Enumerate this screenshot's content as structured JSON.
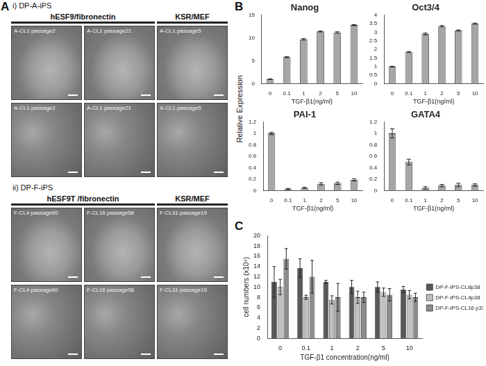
{
  "figure": {
    "panel_labels": [
      "A",
      "B",
      "C"
    ],
    "shared_y_label": "Relative Expression"
  },
  "photo_panel": {
    "groups": [
      {
        "title": "i) DP-A-iPS",
        "headers": [
          "hESF9/fibronectin",
          "KSR/MEF"
        ],
        "rows": [
          [
            "A-CL1 passage2",
            "A-CL1 passage21",
            "A-CL1 passage5"
          ],
          [
            "A-CL1 passage2",
            "A-CL1 passage21",
            "A-CL1 passage5"
          ]
        ]
      },
      {
        "title": "ii) DP-F-iPS",
        "headers": [
          "hESF9T /fibronectin",
          "KSR/MEF"
        ],
        "rows": [
          [
            "F-CL4 passage60",
            "F-CL16 passage58",
            "F-CL31 passage19"
          ],
          [
            "F-CL4 passage60",
            "F-CL16 passage58",
            "F-CL31 passage19"
          ]
        ]
      }
    ]
  },
  "chart_data": [
    {
      "type": "bar",
      "title": "Nanog",
      "x_label": "TGF-β1(ng/ml)",
      "categories": [
        "0",
        "0.1",
        "1",
        "2",
        "5",
        "10"
      ],
      "values": [
        1,
        5.8,
        9.7,
        11.4,
        11.2,
        12.8
      ],
      "errors": [
        0.05,
        0.1,
        0.15,
        0.1,
        0.15,
        0.1
      ],
      "color": "#a6a6a6",
      "ylim": [
        0,
        15
      ],
      "yticks": [
        0,
        5,
        10,
        15
      ],
      "grid": false
    },
    {
      "type": "bar",
      "title": "Oct3/4",
      "x_label": "TGF-β1(ng/ml)",
      "categories": [
        "0",
        "0.1",
        "1",
        "2",
        "5",
        "10"
      ],
      "values": [
        1,
        1.85,
        2.9,
        3.35,
        3.1,
        3.5
      ],
      "errors": [
        0.02,
        0.03,
        0.05,
        0.04,
        0.03,
        0.03
      ],
      "color": "#a6a6a6",
      "ylim": [
        0,
        4
      ],
      "yticks": [
        0,
        0.5,
        1,
        1.5,
        2,
        2.5,
        3,
        3.5,
        4
      ],
      "grid": false
    },
    {
      "type": "bar",
      "title": "PAI-1",
      "x_label": "TGF-β1(ng/ml)",
      "categories": [
        "0",
        "0.1",
        "1",
        "2",
        "5",
        "10"
      ],
      "values": [
        1,
        0.03,
        0.05,
        0.12,
        0.13,
        0.19
      ],
      "errors": [
        0.02,
        0.01,
        0.01,
        0.02,
        0.02,
        0.02
      ],
      "color": "#a6a6a6",
      "ylim": [
        0,
        1.2
      ],
      "yticks": [
        0,
        0.2,
        0.4,
        0.6,
        0.8,
        1,
        1.2
      ],
      "grid": false
    },
    {
      "type": "bar",
      "title": "GATA4",
      "x_label": "TGF-β1(ng/ml)",
      "categories": [
        "0",
        "0.1",
        "1",
        "2",
        "5",
        "10"
      ],
      "values": [
        1,
        0.5,
        0.05,
        0.09,
        0.1,
        0.1
      ],
      "errors": [
        0.08,
        0.05,
        0.02,
        0.02,
        0.03,
        0.02
      ],
      "color": "#a6a6a6",
      "ylim": [
        0,
        1.2
      ],
      "yticks": [
        0,
        0.2,
        0.4,
        0.6,
        0.8,
        1,
        1.2
      ],
      "grid": false
    },
    {
      "type": "bar",
      "x_label": "TGF-β1 concentration(ng/ml)",
      "y_label": "cell numbers (x10⁴)",
      "categories": [
        "0",
        "0.1",
        "1",
        "2",
        "5",
        "10"
      ],
      "series": [
        {
          "name": "DP-F-iPS-CL8p38",
          "color": "#595959",
          "values": [
            11,
            13.7,
            11,
            10,
            10,
            9.5
          ],
          "errors": [
            3,
            1.8,
            0.3,
            1.3,
            1,
            0.6
          ]
        },
        {
          "name": "DP-F-iPS-CL4p38",
          "color": "#c0c0c0",
          "values": [
            10,
            8,
            7.5,
            8,
            9,
            8.5
          ],
          "errors": [
            1.5,
            0.4,
            0.8,
            1.2,
            0.8,
            0.8
          ]
        },
        {
          "name": "DP-F-iPS-CL16 p33",
          "color": "#8c8c8c",
          "values": [
            15.5,
            12,
            8,
            8,
            8.5,
            8
          ],
          "errors": [
            2,
            3.2,
            2.7,
            1,
            1.2,
            0.8
          ]
        }
      ],
      "ylim": [
        0,
        20
      ],
      "yticks": [
        0,
        2,
        4,
        6,
        8,
        10,
        12,
        14,
        16,
        18,
        20
      ],
      "grid": false,
      "legend": "right"
    }
  ]
}
